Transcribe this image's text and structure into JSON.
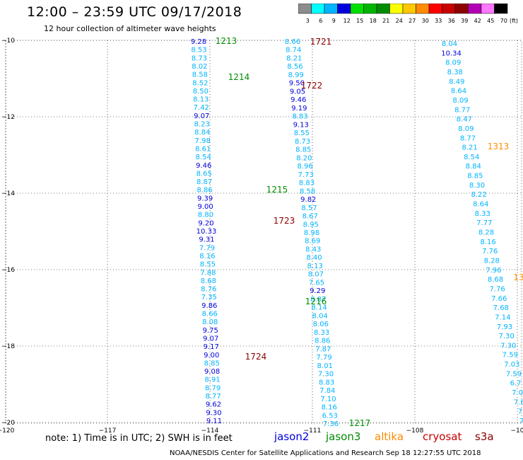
{
  "title": "12:00 – 23:59 UTC 09/17/2018",
  "subtitle": "12 hour collection of altimeter wave heights",
  "legend": {
    "unit": "(ft)",
    "bins": [
      {
        "label": "3",
        "color": "#8c8c8c"
      },
      {
        "label": "6",
        "color": "#00ffff"
      },
      {
        "label": "9",
        "color": "#00b4ff"
      },
      {
        "label": "12",
        "color": "#0000dc"
      },
      {
        "label": "15",
        "color": "#00e000"
      },
      {
        "label": "18",
        "color": "#00b400"
      },
      {
        "label": "21",
        "color": "#008c00"
      },
      {
        "label": "24",
        "color": "#ffff00"
      },
      {
        "label": "27",
        "color": "#ffc800"
      },
      {
        "label": "30",
        "color": "#ff8c00"
      },
      {
        "label": "33",
        "color": "#ff0000"
      },
      {
        "label": "36",
        "color": "#c80000"
      },
      {
        "label": "39",
        "color": "#8c0000"
      },
      {
        "label": "42",
        "color": "#b400b4"
      },
      {
        "label": "45",
        "color": "#ff78ff"
      },
      {
        "label": "70",
        "color": "#000000"
      }
    ]
  },
  "map": {
    "lon_ticks": [
      "−120",
      "−117",
      "−114",
      "−111",
      "−108",
      "−10"
    ],
    "lat_ticks": [
      "−10",
      "−12",
      "−14",
      "−16",
      "−18",
      "−20"
    ],
    "pass_labels": [
      {
        "text": "1213",
        "color": "#008c00"
      },
      {
        "text": "1214",
        "color": "#008c00"
      },
      {
        "text": "1215",
        "color": "#008c00"
      },
      {
        "text": "1216",
        "color": "#008c00"
      },
      {
        "text": "1217",
        "color": "#008c00"
      },
      {
        "text": "1721",
        "color": "#8c0000"
      },
      {
        "text": "1722",
        "color": "#8c0000"
      },
      {
        "text": "1723",
        "color": "#8c0000"
      },
      {
        "text": "1724",
        "color": "#8c0000"
      },
      {
        "text": "1313",
        "color": "#ff8c00"
      },
      {
        "text": "13",
        "color": "#ff8c00"
      }
    ],
    "track_a_values": [
      "9.28",
      "8.53",
      "8.73",
      "8.02",
      "8.58",
      "8.52",
      "8.50",
      "8.13",
      "7.42",
      "9.07",
      "8.23",
      "8.84",
      "7.98",
      "8.61",
      "8.54",
      "9.46",
      "8.65",
      "8.87",
      "8.86",
      "9.39",
      "9.00",
      "8.80",
      "9.20",
      "10.33",
      "9.31",
      "7.79",
      "8.16",
      "8.55",
      "7.88",
      "8.68",
      "8.76",
      "7.35",
      "9.86",
      "8.66",
      "8.08",
      "9.75",
      "9.07",
      "9.17",
      "9.00",
      "8.85",
      "9.08",
      "8.91",
      "8.79",
      "8.77",
      "9.62",
      "9.30",
      "9.11"
    ],
    "track_b_values": [
      "8.66",
      "8.74",
      "8.21",
      "8.56",
      "8.99",
      "9.50",
      "9.05",
      "9.46",
      "9.19",
      "8.83",
      "9.13",
      "8.55",
      "8.73",
      "8.85",
      "8.20",
      "8.96",
      "7.73",
      "8.83",
      "8.58",
      "9.82",
      "8.57",
      "8.67",
      "8.95",
      "8.98",
      "8.69",
      "8.43",
      "8.40",
      "8.13",
      "8.07",
      "7.65",
      "9.29",
      "8.87",
      "8.14",
      "8.04",
      "8.06",
      "8.33",
      "8.86",
      "7.87",
      "7.79",
      "8.01",
      "7.30",
      "8.83",
      "7.84",
      "7.10",
      "8.16",
      "6.53",
      "7.36"
    ],
    "track_c_values": [
      "8.04",
      "10.34",
      "8.09",
      "8.38",
      "8.49",
      "8.64",
      "8.09",
      "8.77",
      "8.47",
      "8.09",
      "8.77",
      "8.21",
      "8.54",
      "8.84",
      "8.85",
      "8.30",
      "8.22",
      "8.64",
      "8.33",
      "7.77",
      "8.28",
      "8.16",
      "7.76",
      "8.28",
      "7.96",
      "8.68",
      "7.76",
      "7.66",
      "7.68",
      "7.14",
      "7.93",
      "7.30",
      "7.30",
      "7.59",
      "7.03",
      "7.59",
      "6.7",
      "7.0",
      "7.6",
      "7.",
      "7."
    ]
  },
  "footer": {
    "note": "note:  1) Time is in UTC;  2) SWH is in feet",
    "satellites": [
      {
        "name": "jason2",
        "color": "#0000dc"
      },
      {
        "name": "jason3",
        "color": "#008c00"
      },
      {
        "name": "altika",
        "color": "#ff8c00"
      },
      {
        "name": "cryosat",
        "color": "#c80000"
      },
      {
        "name": "s3a",
        "color": "#8c0000"
      }
    ],
    "credit": "NOAA/NESDIS Center for Satellite Applications and Research    Sep 18 12:27:55 UTC 2018"
  }
}
